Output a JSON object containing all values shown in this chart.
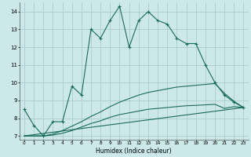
{
  "title": "",
  "xlabel": "Humidex (Indice chaleur)",
  "bg_color": "#cce8e8",
  "grid_color": "#aacccc",
  "line_color": "#1a6b5a",
  "xlim": [
    -0.5,
    23.5
  ],
  "ylim": [
    6.8,
    14.5
  ],
  "yticks": [
    7,
    8,
    9,
    10,
    11,
    12,
    13,
    14
  ],
  "xticks": [
    0,
    1,
    2,
    3,
    4,
    5,
    6,
    7,
    8,
    9,
    10,
    11,
    12,
    13,
    14,
    15,
    16,
    17,
    18,
    19,
    20,
    21,
    22,
    23
  ],
  "line1_x": [
    0,
    1,
    2,
    3,
    4,
    5,
    6,
    7,
    8,
    9,
    10,
    11,
    12,
    13,
    14,
    15,
    16,
    17,
    18,
    19,
    20,
    21,
    22,
    23
  ],
  "line1_y": [
    8.5,
    7.6,
    7.0,
    7.8,
    7.8,
    9.8,
    9.3,
    13.0,
    12.5,
    13.5,
    14.3,
    12.0,
    13.5,
    14.0,
    13.5,
    13.3,
    12.5,
    12.2,
    12.2,
    11.0,
    10.0,
    9.3,
    8.9,
    8.6
  ],
  "line2_x": [
    0,
    1,
    2,
    3,
    4,
    5,
    6,
    7,
    8,
    9,
    10,
    11,
    12,
    13,
    14,
    15,
    16,
    17,
    18,
    19,
    20,
    21,
    22,
    23
  ],
  "line2_y": [
    7.0,
    7.0,
    7.0,
    7.05,
    7.15,
    7.3,
    7.5,
    7.7,
    7.85,
    8.05,
    8.2,
    8.3,
    8.4,
    8.5,
    8.55,
    8.6,
    8.65,
    8.7,
    8.72,
    8.75,
    8.78,
    8.55,
    8.65,
    8.6
  ],
  "line3_x": [
    0,
    1,
    2,
    3,
    4,
    5,
    6,
    7,
    8,
    9,
    10,
    11,
    12,
    13,
    14,
    15,
    16,
    17,
    18,
    19,
    20,
    21,
    22,
    23
  ],
  "line3_y": [
    7.0,
    7.0,
    7.0,
    7.1,
    7.3,
    7.55,
    7.8,
    8.1,
    8.35,
    8.65,
    8.9,
    9.1,
    9.3,
    9.45,
    9.55,
    9.65,
    9.75,
    9.8,
    9.85,
    9.9,
    9.95,
    9.4,
    8.95,
    8.6
  ],
  "line4_x": [
    0,
    23
  ],
  "line4_y": [
    7.0,
    8.6
  ]
}
